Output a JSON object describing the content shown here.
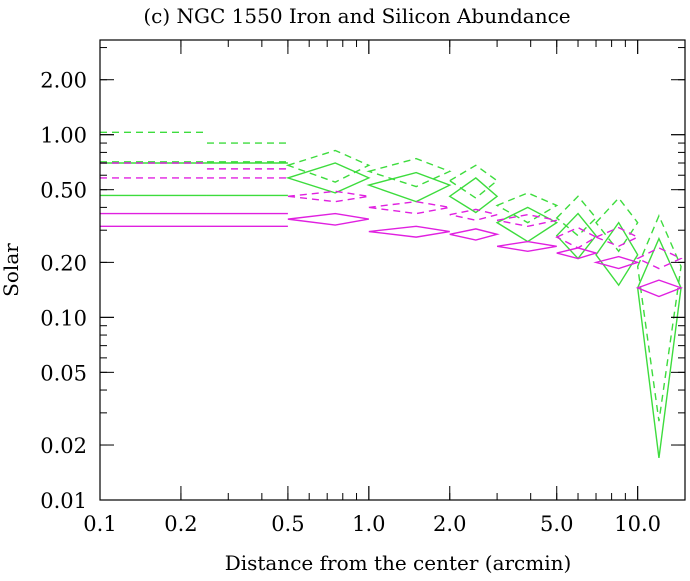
{
  "chart_data": {
    "type": "line",
    "title": "(c) NGC 1550 Iron and Silicon Abundance",
    "xlabel": "Distance from the center (arcmin)",
    "ylabel": "Solar",
    "xscale": "log",
    "yscale": "log",
    "xlim": [
      0.1,
      15
    ],
    "ylim": [
      0.01,
      3.3
    ],
    "x_ticks": [
      0.1,
      0.2,
      0.5,
      1.0,
      2.0,
      5.0,
      10.0
    ],
    "x_tick_labels": [
      "0.1",
      "0.2",
      "0.5",
      "1.0",
      "2.0",
      "5.0",
      "10.0"
    ],
    "y_ticks": [
      0.01,
      0.02,
      0.05,
      0.1,
      0.2,
      0.5,
      1.0,
      2.0
    ],
    "y_tick_labels": [
      "0.01",
      "0.02",
      "0.05",
      "0.10",
      "0.20",
      "0.50",
      "1.00",
      "2.00"
    ],
    "legend": "none",
    "colors": {
      "green": "#3ddc3d",
      "magenta": "#e020e0"
    },
    "series": [
      {
        "color": "green",
        "style": "solid",
        "points": [
          {
            "x": 0.175,
            "xlo": 0.1,
            "xhi": 0.25,
            "y": 0.555,
            "ylo": 0.465,
            "yhi": 0.7
          },
          {
            "x": 0.375,
            "xlo": 0.25,
            "xhi": 0.5,
            "y": 0.58,
            "ylo": 0.465,
            "yhi": 0.7
          },
          {
            "x": 0.75,
            "xlo": 0.5,
            "xhi": 1.0,
            "y": 0.58,
            "ylo": 0.48,
            "yhi": 0.7
          },
          {
            "x": 1.5,
            "xlo": 1.0,
            "xhi": 2.0,
            "y": 0.53,
            "ylo": 0.43,
            "yhi": 0.62
          },
          {
            "x": 2.5,
            "xlo": 2.0,
            "xhi": 3.0,
            "y": 0.46,
            "ylo": 0.375,
            "yhi": 0.58
          },
          {
            "x": 3.9,
            "xlo": 3.0,
            "xhi": 5.0,
            "y": 0.33,
            "ylo": 0.26,
            "yhi": 0.4
          },
          {
            "x": 6.0,
            "xlo": 5.0,
            "xhi": 7.0,
            "y": 0.28,
            "ylo": 0.21,
            "yhi": 0.37
          },
          {
            "x": 8.5,
            "xlo": 7.0,
            "xhi": 10.0,
            "y": 0.22,
            "ylo": 0.15,
            "yhi": 0.33
          },
          {
            "x": 12.0,
            "xlo": 10.0,
            "xhi": 14.5,
            "y": 0.145,
            "ylo": 0.017,
            "yhi": 0.27
          }
        ]
      },
      {
        "color": "green",
        "style": "dashed",
        "points": [
          {
            "x": 0.175,
            "xlo": 0.1,
            "xhi": 0.25,
            "y": 0.84,
            "ylo": 0.71,
            "yhi": 1.03
          },
          {
            "x": 0.375,
            "xlo": 0.25,
            "xhi": 0.5,
            "y": 0.84,
            "ylo": 0.71,
            "yhi": 0.9
          },
          {
            "x": 0.75,
            "xlo": 0.5,
            "xhi": 1.0,
            "y": 0.68,
            "ylo": 0.55,
            "yhi": 0.82
          },
          {
            "x": 1.5,
            "xlo": 1.0,
            "xhi": 2.0,
            "y": 0.63,
            "ylo": 0.52,
            "yhi": 0.74
          },
          {
            "x": 2.5,
            "xlo": 2.0,
            "xhi": 3.0,
            "y": 0.56,
            "ylo": 0.45,
            "yhi": 0.68
          },
          {
            "x": 3.9,
            "xlo": 3.0,
            "xhi": 5.0,
            "y": 0.41,
            "ylo": 0.33,
            "yhi": 0.48
          },
          {
            "x": 6.0,
            "xlo": 5.0,
            "xhi": 7.0,
            "y": 0.35,
            "ylo": 0.28,
            "yhi": 0.46
          },
          {
            "x": 8.5,
            "xlo": 7.0,
            "xhi": 10.0,
            "y": 0.33,
            "ylo": 0.23,
            "yhi": 0.45
          },
          {
            "x": 12.0,
            "xlo": 10.0,
            "xhi": 14.5,
            "y": 0.19,
            "ylo": 0.027,
            "yhi": 0.36
          }
        ]
      },
      {
        "color": "magenta",
        "style": "solid",
        "points": [
          {
            "x": 0.175,
            "xlo": 0.1,
            "xhi": 0.25,
            "y": 0.345,
            "ylo": 0.315,
            "yhi": 0.37
          },
          {
            "x": 0.375,
            "xlo": 0.25,
            "xhi": 0.5,
            "y": 0.345,
            "ylo": 0.315,
            "yhi": 0.37
          },
          {
            "x": 0.75,
            "xlo": 0.5,
            "xhi": 1.0,
            "y": 0.345,
            "ylo": 0.32,
            "yhi": 0.37
          },
          {
            "x": 1.5,
            "xlo": 1.0,
            "xhi": 2.0,
            "y": 0.295,
            "ylo": 0.275,
            "yhi": 0.315
          },
          {
            "x": 2.5,
            "xlo": 2.0,
            "xhi": 3.0,
            "y": 0.285,
            "ylo": 0.265,
            "yhi": 0.305
          },
          {
            "x": 3.9,
            "xlo": 3.0,
            "xhi": 5.0,
            "y": 0.245,
            "ylo": 0.23,
            "yhi": 0.26
          },
          {
            "x": 6.0,
            "xlo": 5.0,
            "xhi": 7.0,
            "y": 0.225,
            "ylo": 0.21,
            "yhi": 0.24
          },
          {
            "x": 8.5,
            "xlo": 7.0,
            "xhi": 10.0,
            "y": 0.2,
            "ylo": 0.185,
            "yhi": 0.215
          },
          {
            "x": 12.0,
            "xlo": 10.0,
            "xhi": 14.5,
            "y": 0.145,
            "ylo": 0.13,
            "yhi": 0.16
          }
        ]
      },
      {
        "color": "magenta",
        "style": "dashed",
        "points": [
          {
            "x": 0.175,
            "xlo": 0.1,
            "xhi": 0.25,
            "y": 0.64,
            "ylo": 0.58,
            "yhi": 0.7
          },
          {
            "x": 0.375,
            "xlo": 0.25,
            "xhi": 0.5,
            "y": 0.64,
            "ylo": 0.58,
            "yhi": 0.65
          },
          {
            "x": 0.75,
            "xlo": 0.5,
            "xhi": 1.0,
            "y": 0.46,
            "ylo": 0.43,
            "yhi": 0.49
          },
          {
            "x": 1.5,
            "xlo": 1.0,
            "xhi": 2.0,
            "y": 0.4,
            "ylo": 0.37,
            "yhi": 0.43
          },
          {
            "x": 2.5,
            "xlo": 2.0,
            "xhi": 3.0,
            "y": 0.365,
            "ylo": 0.34,
            "yhi": 0.39
          },
          {
            "x": 3.9,
            "xlo": 3.0,
            "xhi": 5.0,
            "y": 0.34,
            "ylo": 0.315,
            "yhi": 0.365
          },
          {
            "x": 6.0,
            "xlo": 5.0,
            "xhi": 7.0,
            "y": 0.275,
            "ylo": 0.24,
            "yhi": 0.31
          },
          {
            "x": 8.5,
            "xlo": 7.0,
            "xhi": 10.0,
            "y": 0.275,
            "ylo": 0.245,
            "yhi": 0.31
          },
          {
            "x": 12.0,
            "xlo": 10.0,
            "xhi": 14.5,
            "y": 0.21,
            "ylo": 0.185,
            "yhi": 0.24
          }
        ]
      }
    ]
  }
}
